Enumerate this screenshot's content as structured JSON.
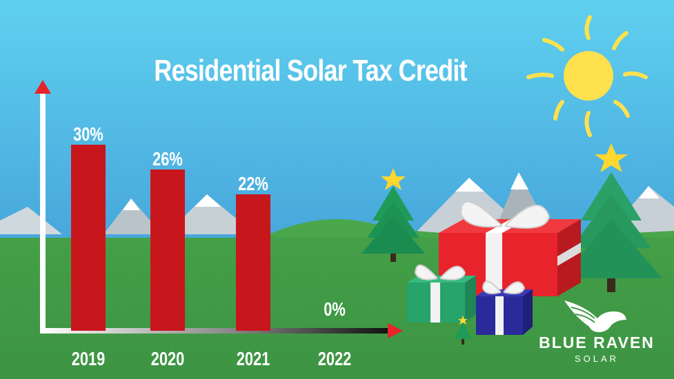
{
  "chart_data": {
    "type": "bar",
    "title": "Residential Solar Tax Credit",
    "categories": [
      "2019",
      "2020",
      "2021",
      "2022"
    ],
    "values": [
      30,
      26,
      22,
      0
    ],
    "value_labels": [
      "30%",
      "26%",
      "22%",
      "0%"
    ],
    "ylim": [
      0,
      40
    ],
    "grid": false,
    "legend": "none",
    "bar_color": "#c8161d",
    "axis_color": "#ffffff"
  },
  "brand": {
    "name": "BLUE RAVEN",
    "sub": "SOLAR"
  },
  "colors": {
    "sky_top": "#57c7ea",
    "sky_bottom": "#3a8fd0",
    "grass": "#3f9a46",
    "sun": "#ffe14d"
  }
}
